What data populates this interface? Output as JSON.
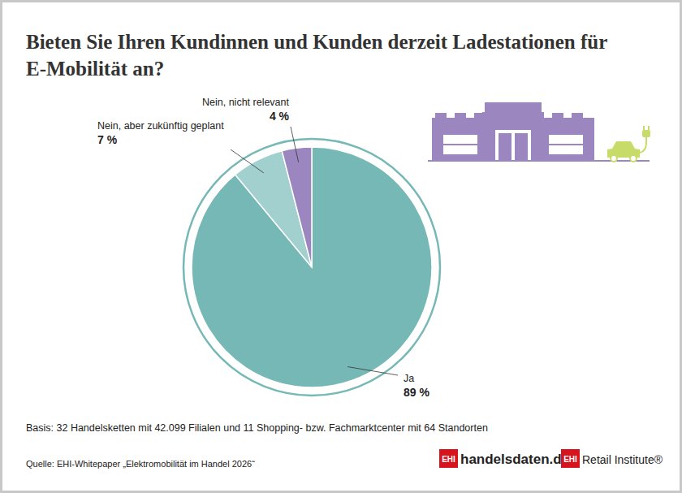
{
  "chart_data": {
    "type": "pie",
    "title": "Bieten Sie Ihren Kundinnen und Kunden derzeit Ladestationen für E-Mobilität an?",
    "categories": [
      "Ja",
      "Nein, aber zukünftig geplant",
      "Nein, nicht relevant"
    ],
    "values": [
      89,
      7,
      4
    ],
    "value_labels": [
      "89 %",
      "7 %",
      "4 %"
    ],
    "colors": [
      "#76b8b6",
      "#a2d0ce",
      "#9b86c0"
    ],
    "data_labels": true,
    "annotations": [
      "Basis: 32 Handelsketten mit 42.099 Filialen und 11 Shopping- bzw. Fachmarktcenter mit 64 Standorten",
      "Quelle: EHI-Whitepaper „Elektromobilität im Handel 2026“"
    ],
    "logos": [
      {
        "badge": "EHI",
        "text": "handelsdaten.de"
      },
      {
        "badge": "EHI",
        "text": "Retail Institute®"
      }
    ]
  }
}
